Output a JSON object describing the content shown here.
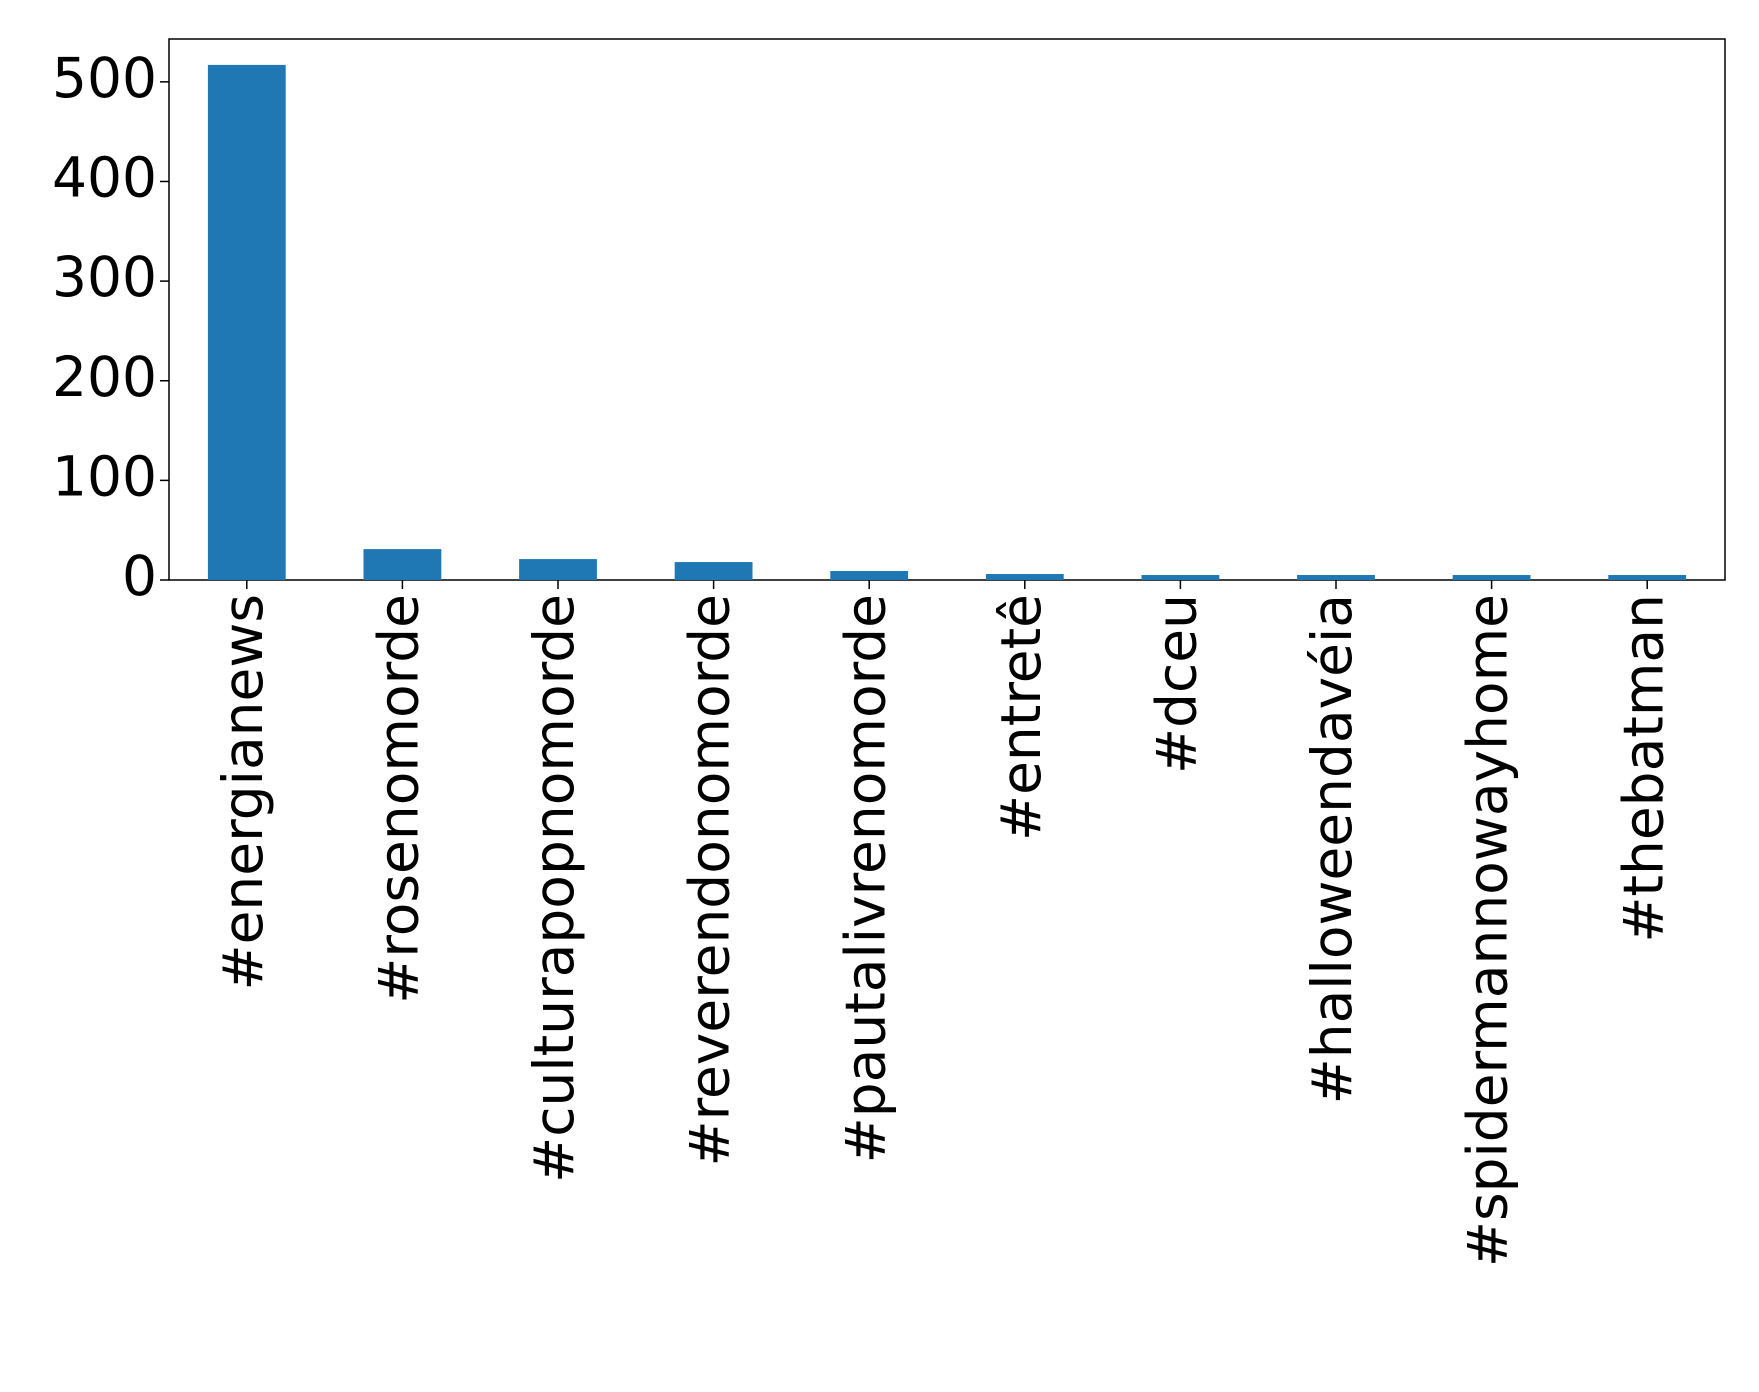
{
  "chart_data": {
    "type": "bar",
    "categories": [
      "#energianews",
      "#rosenomorde",
      "#culturapopnomorde",
      "#reverendonomorde",
      "#pautalivrenomorde",
      "#entretê",
      "#dceu",
      "#halloweendavéia",
      "#spidermannowayhome",
      "#thebatman"
    ],
    "values": [
      517,
      31,
      21,
      18,
      9,
      6,
      5,
      5,
      5,
      5
    ],
    "color": "#1f77b4",
    "ylim": [
      0,
      543
    ],
    "yticks": [
      0,
      100,
      200,
      300,
      400,
      500
    ],
    "grid": false
  }
}
